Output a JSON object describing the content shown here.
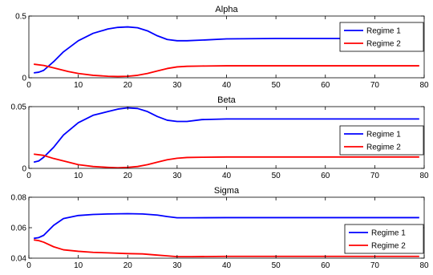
{
  "chart_data": [
    {
      "type": "line",
      "title": "Alpha",
      "xlim": [
        0,
        80
      ],
      "ylim": [
        0,
        0.5
      ],
      "xticks": [
        0,
        10,
        20,
        30,
        40,
        50,
        60,
        70,
        80
      ],
      "yticks": [
        0,
        0.5
      ],
      "ytick_labels": [
        "0",
        "0.5"
      ],
      "legend": {
        "placement": "top-right"
      },
      "series": [
        {
          "name": "Regime 1",
          "color": "#0000ff",
          "x": [
            1,
            2,
            3,
            5,
            7,
            10,
            13,
            16,
            18,
            20,
            22,
            24,
            26,
            28,
            30,
            32,
            35,
            40,
            50,
            60,
            70,
            79
          ],
          "y": [
            0.04,
            0.045,
            0.06,
            0.13,
            0.21,
            0.3,
            0.36,
            0.395,
            0.408,
            0.412,
            0.405,
            0.38,
            0.34,
            0.31,
            0.3,
            0.3,
            0.305,
            0.315,
            0.318,
            0.318,
            0.318,
            0.318
          ]
        },
        {
          "name": "Regime 2",
          "color": "#ff0000",
          "x": [
            1,
            3,
            5,
            8,
            10,
            13,
            16,
            18,
            20,
            22,
            24,
            26,
            28,
            30,
            32,
            35,
            40,
            50,
            60,
            70,
            79
          ],
          "y": [
            0.11,
            0.1,
            0.08,
            0.05,
            0.035,
            0.02,
            0.012,
            0.01,
            0.012,
            0.02,
            0.035,
            0.055,
            0.075,
            0.088,
            0.093,
            0.095,
            0.097,
            0.097,
            0.097,
            0.097,
            0.097
          ]
        }
      ]
    },
    {
      "type": "line",
      "title": "Beta",
      "xlim": [
        0,
        80
      ],
      "ylim": [
        0,
        0.05
      ],
      "xticks": [
        0,
        10,
        20,
        30,
        40,
        50,
        60,
        70,
        80
      ],
      "yticks": [
        0,
        0.05
      ],
      "ytick_labels": [
        "0",
        "0.05"
      ],
      "legend": {
        "placement": "right"
      },
      "series": [
        {
          "name": "Regime 1",
          "color": "#0000ff",
          "x": [
            1,
            2,
            3,
            5,
            7,
            10,
            13,
            16,
            18,
            20,
            22,
            24,
            26,
            28,
            30,
            32,
            35,
            40,
            50,
            60,
            70,
            79
          ],
          "y": [
            0.005,
            0.006,
            0.009,
            0.017,
            0.027,
            0.037,
            0.043,
            0.046,
            0.048,
            0.049,
            0.0485,
            0.046,
            0.042,
            0.039,
            0.038,
            0.038,
            0.0395,
            0.04,
            0.04,
            0.04,
            0.04,
            0.04
          ]
        },
        {
          "name": "Regime 2",
          "color": "#ff0000",
          "x": [
            1,
            3,
            5,
            8,
            10,
            13,
            16,
            18,
            20,
            22,
            24,
            26,
            28,
            30,
            32,
            35,
            40,
            50,
            60,
            70,
            79
          ],
          "y": [
            0.0115,
            0.0105,
            0.008,
            0.005,
            0.003,
            0.0015,
            0.0008,
            0.0005,
            0.0008,
            0.0015,
            0.003,
            0.005,
            0.007,
            0.0082,
            0.0088,
            0.009,
            0.0092,
            0.0092,
            0.0092,
            0.0092,
            0.0092
          ]
        }
      ]
    },
    {
      "type": "line",
      "title": "Sigma",
      "xlim": [
        0,
        80
      ],
      "ylim": [
        0.04,
        0.08
      ],
      "xticks": [
        0,
        10,
        20,
        30,
        40,
        50,
        60,
        70,
        80
      ],
      "yticks": [
        0.04,
        0.06,
        0.08
      ],
      "ytick_labels": [
        "0.04",
        "0.06",
        "0.08"
      ],
      "legend": {
        "placement": "bottom-right"
      },
      "series": [
        {
          "name": "Regime 1",
          "color": "#0000ff",
          "x": [
            1,
            2,
            3,
            5,
            7,
            10,
            13,
            16,
            20,
            23,
            26,
            28,
            30,
            33,
            40,
            50,
            60,
            70,
            79
          ],
          "y": [
            0.053,
            0.0535,
            0.055,
            0.0615,
            0.066,
            0.068,
            0.0687,
            0.069,
            0.0692,
            0.069,
            0.0683,
            0.0673,
            0.0665,
            0.0665,
            0.0666,
            0.0666,
            0.0666,
            0.0666,
            0.0666
          ]
        },
        {
          "name": "Regime 2",
          "color": "#ff0000",
          "x": [
            1,
            2,
            3,
            5,
            7,
            10,
            13,
            16,
            20,
            23,
            26,
            28,
            30,
            33,
            40,
            50,
            60,
            70,
            79
          ],
          "y": [
            0.052,
            0.0515,
            0.0505,
            0.0475,
            0.0455,
            0.0445,
            0.0438,
            0.0435,
            0.043,
            0.0428,
            0.042,
            0.0415,
            0.041,
            0.041,
            0.0412,
            0.0412,
            0.0412,
            0.0412,
            0.0412
          ]
        }
      ]
    }
  ]
}
